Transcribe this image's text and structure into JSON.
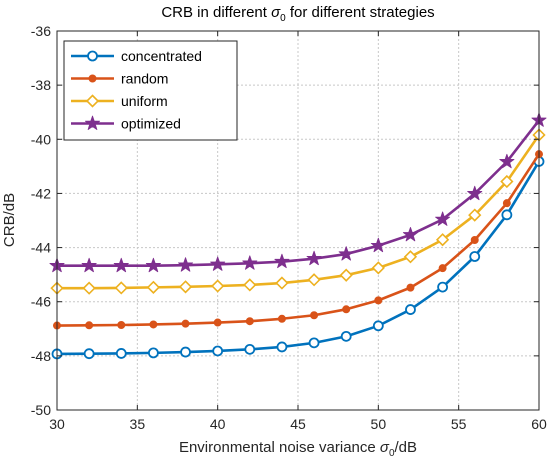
{
  "chart_data": {
    "type": "line",
    "title": "CRB in different σ0 for different strategies",
    "title_parts": {
      "prefix": "CRB in different ",
      "sigma": "σ",
      "sub": "0",
      "suffix": " for different strategies"
    },
    "xlabel": "Environmental noise variance σ0/dB",
    "xlabel_parts": {
      "prefix": "Environmental noise variance ",
      "sigma": "σ",
      "sub": "0",
      "suffix": "/dB"
    },
    "ylabel": "CRB/dB",
    "xlim": [
      30,
      60
    ],
    "ylim": [
      -50,
      -36
    ],
    "xticks": [
      "30",
      "35",
      "40",
      "45",
      "50",
      "55",
      "60"
    ],
    "yticks": [
      "-36",
      "-38",
      "-40",
      "-42",
      "-44",
      "-46",
      "-48",
      "-50"
    ],
    "grid": true,
    "legend_position": "top-left",
    "x": [
      30,
      32,
      34,
      36,
      38,
      40,
      42,
      44,
      46,
      48,
      50,
      52,
      54,
      56,
      58,
      60
    ],
    "series": [
      {
        "name": "concentrated",
        "color": "#0072BD",
        "marker": "circle",
        "values": [
          -47.93,
          -47.92,
          -47.91,
          -47.89,
          -47.86,
          -47.82,
          -47.76,
          -47.67,
          -47.52,
          -47.28,
          -46.89,
          -46.29,
          -45.46,
          -44.33,
          -42.79,
          -40.82
        ]
      },
      {
        "name": "random",
        "color": "#D95319",
        "marker": "dot",
        "values": [
          -46.88,
          -46.87,
          -46.86,
          -46.84,
          -46.81,
          -46.77,
          -46.72,
          -46.63,
          -46.5,
          -46.28,
          -45.95,
          -45.48,
          -44.76,
          -43.72,
          -42.36,
          -40.55
        ]
      },
      {
        "name": "uniform",
        "color": "#EDB120",
        "marker": "diamond",
        "values": [
          -45.5,
          -45.5,
          -45.49,
          -45.47,
          -45.45,
          -45.42,
          -45.38,
          -45.31,
          -45.19,
          -45.02,
          -44.75,
          -44.34,
          -43.71,
          -42.8,
          -41.56,
          -39.84
        ]
      },
      {
        "name": "optimized",
        "color": "#7E2F8E",
        "marker": "star",
        "values": [
          -44.67,
          -44.67,
          -44.67,
          -44.67,
          -44.65,
          -44.62,
          -44.58,
          -44.52,
          -44.41,
          -44.24,
          -43.93,
          -43.53,
          -42.96,
          -42.01,
          -40.83,
          -39.3
        ]
      }
    ]
  }
}
